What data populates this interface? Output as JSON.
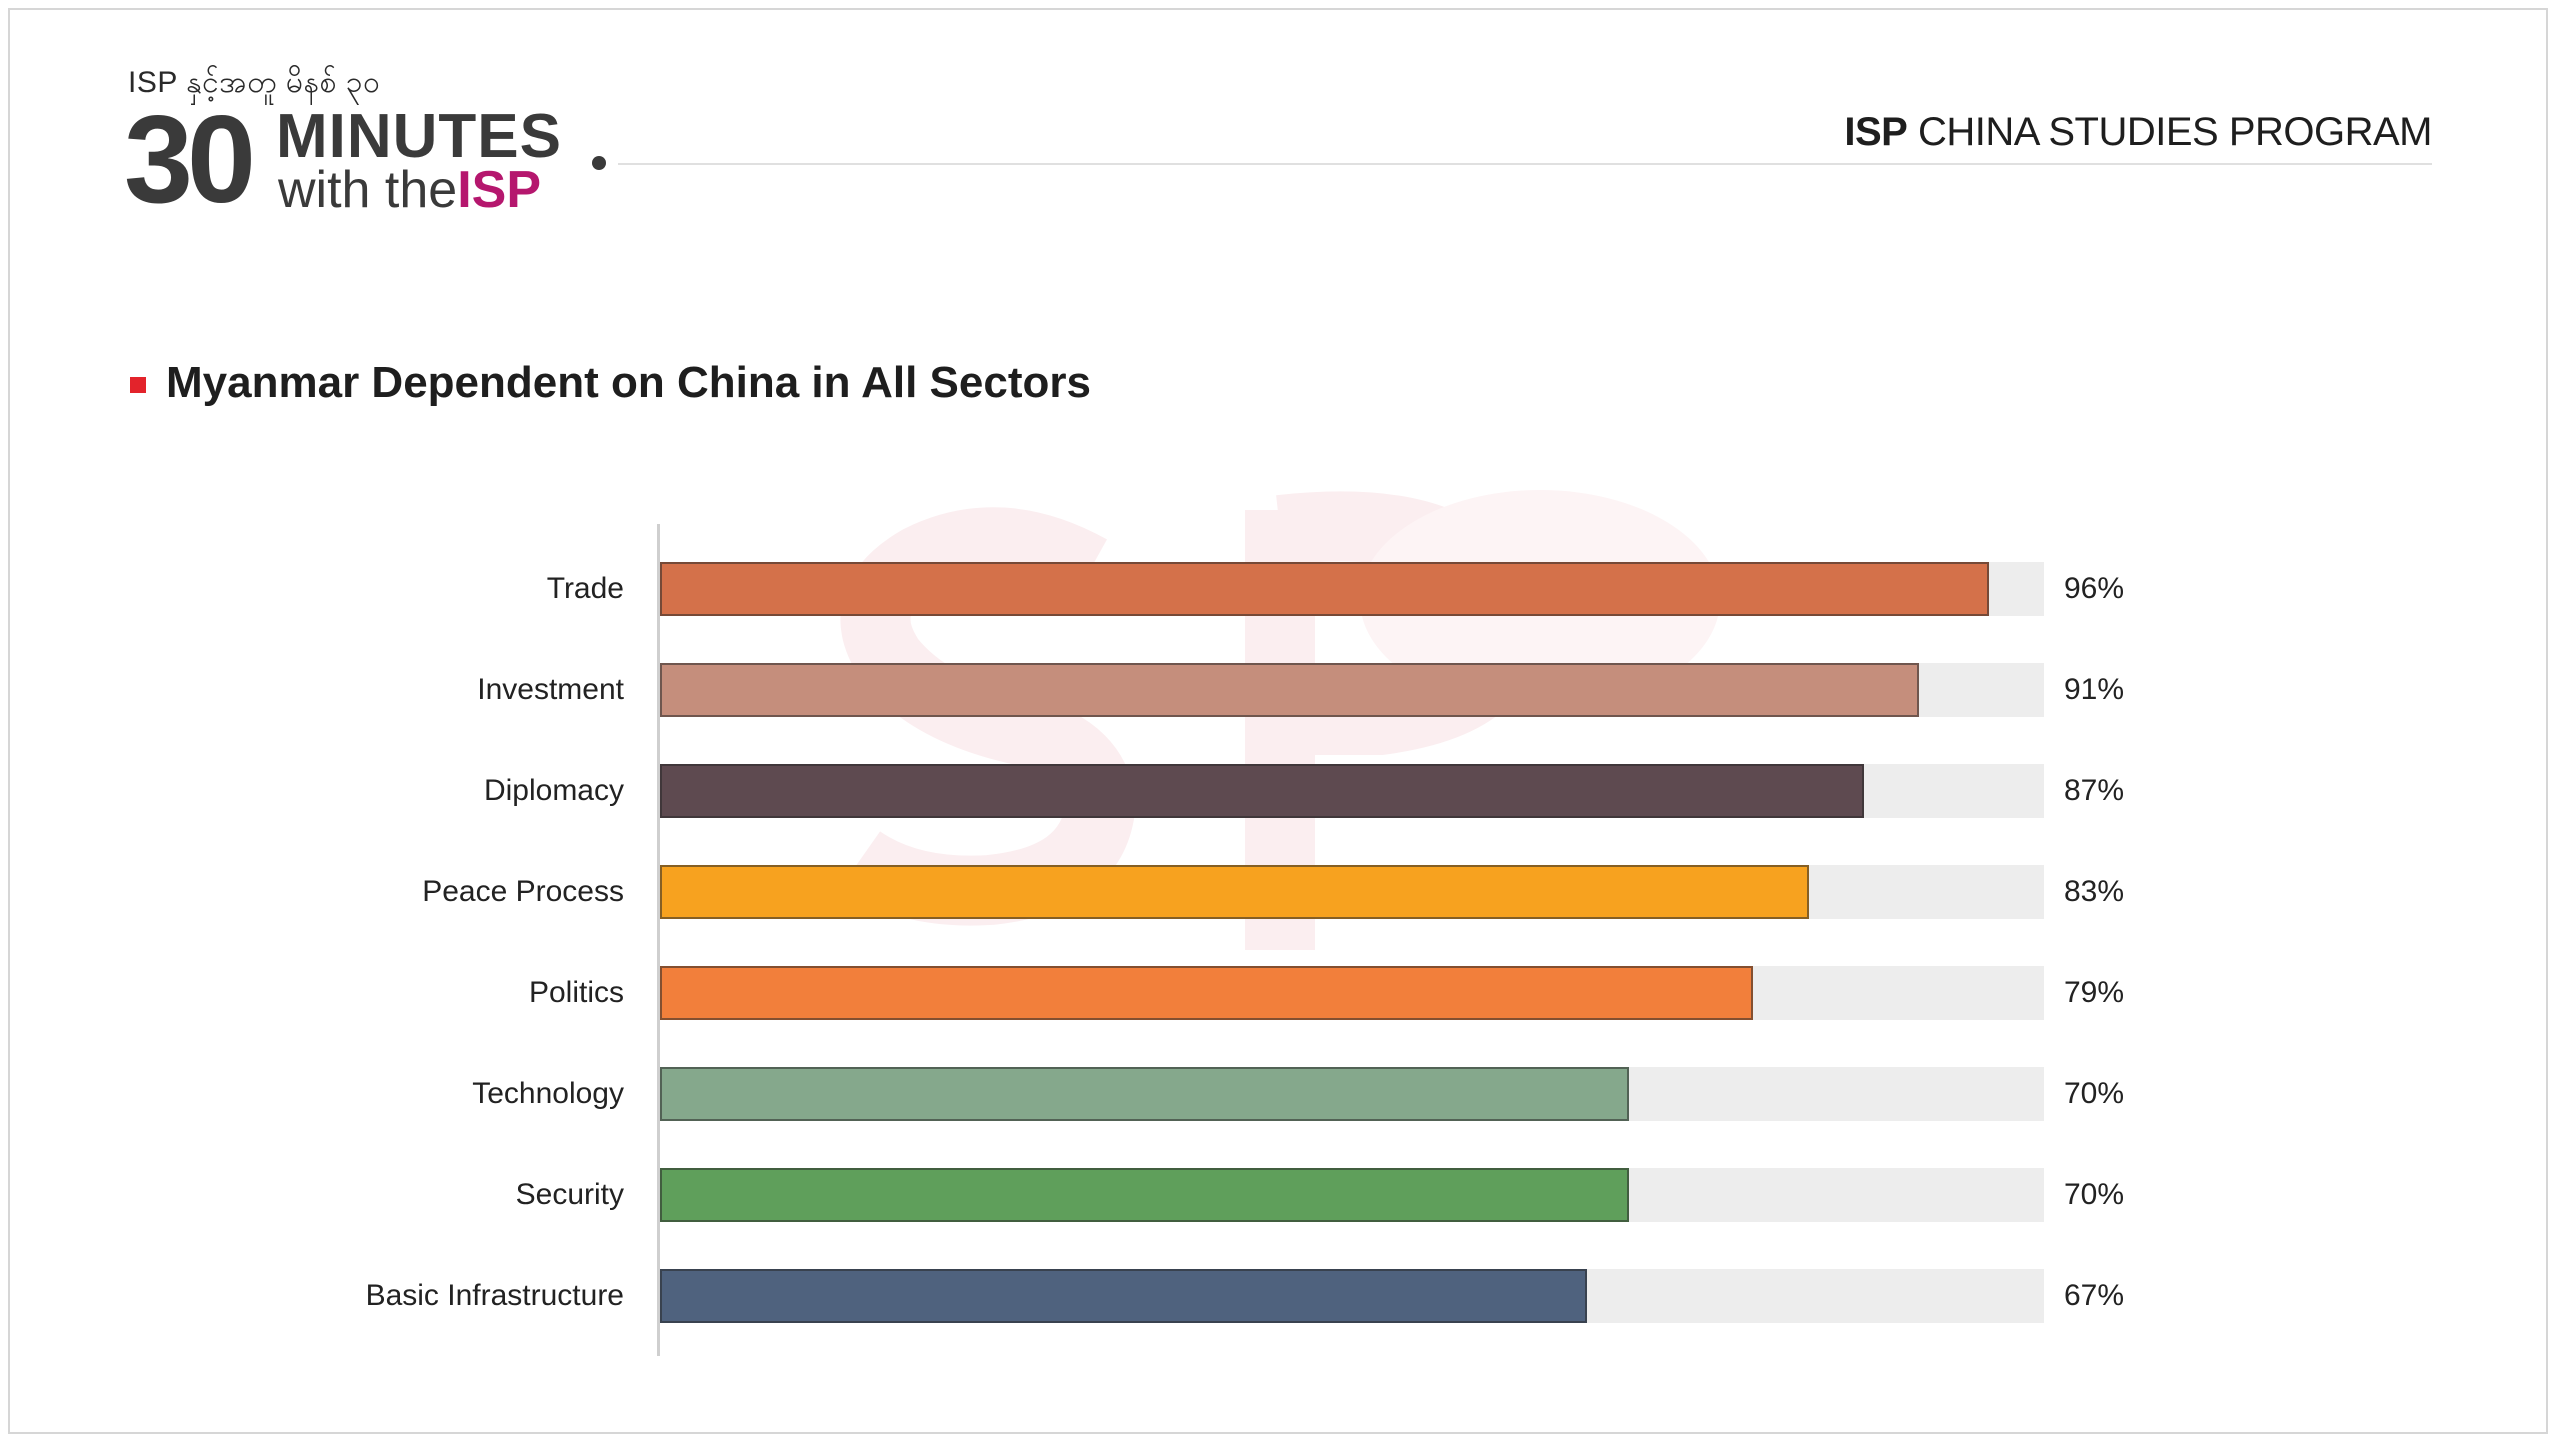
{
  "header": {
    "logo_tagline": "ISP နှင့်အတူ မိနစ် ၃၀",
    "logo_number": "30",
    "logo_minutes": "MINUTES",
    "logo_with": "with the",
    "logo_isp": "ISP",
    "program_bold": "ISP",
    "program_rest": " CHINA STUDIES PROGRAM"
  },
  "colors": {
    "brand_magenta": "#b5176e",
    "title_marker": "#e3232b",
    "track": "#ededed"
  },
  "chart_data": {
    "type": "bar",
    "orientation": "horizontal",
    "title": "Myanmar Dependent on China in All Sectors",
    "xlabel": "",
    "ylabel": "",
    "xlim": [
      0,
      100
    ],
    "grid": false,
    "categories": [
      "Trade",
      "Investment",
      "Diplomacy",
      "Peace Process",
      "Politics",
      "Technology",
      "Security",
      "Basic Infrastructure"
    ],
    "values": [
      96,
      91,
      87,
      83,
      79,
      70,
      70,
      67
    ],
    "value_labels": [
      "96%",
      "91%",
      "87%",
      "83%",
      "79%",
      "70%",
      "70%",
      "67%"
    ],
    "bar_colors": [
      "#d4714a",
      "#c58e7c",
      "#5e4a50",
      "#f7a21f",
      "#f27f3b",
      "#85a88c",
      "#5f9f5b",
      "#4f627e"
    ]
  }
}
